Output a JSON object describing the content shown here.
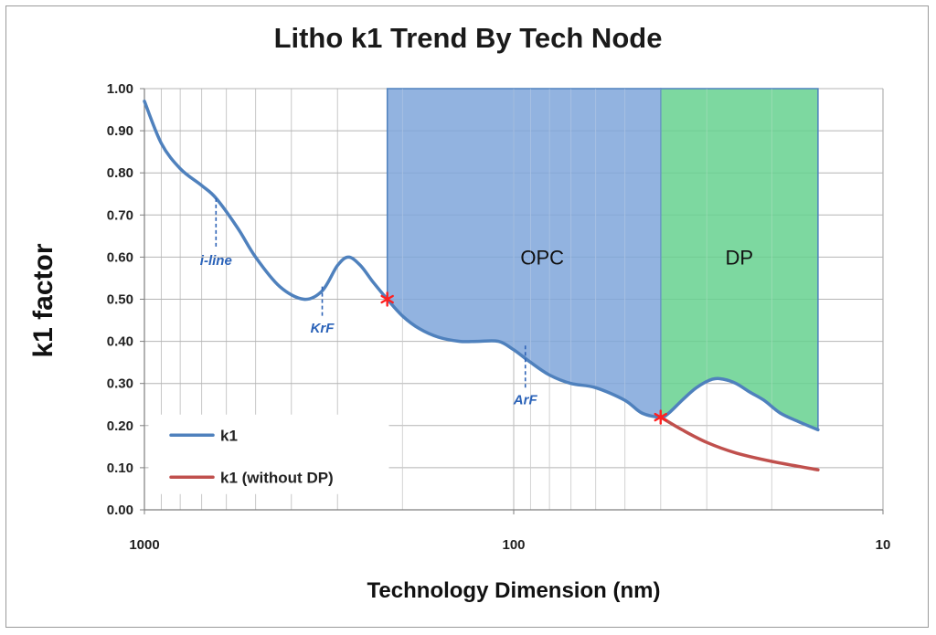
{
  "chart_data": {
    "type": "line",
    "title": "Litho k1 Trend By Tech Node",
    "xlabel": "Technology Dimension (nm)",
    "ylabel": "k1 factor",
    "x_scale": "log",
    "x_reversed": true,
    "xlim": [
      1000,
      10
    ],
    "ylim": [
      0,
      1
    ],
    "grid": true,
    "x_ticks": [
      1000,
      100,
      10
    ],
    "x_tick_labels": [
      "1000",
      "100",
      "10"
    ],
    "y_ticks": [
      0,
      0.1,
      0.2,
      0.3,
      0.4,
      0.5,
      0.6,
      0.7,
      0.8,
      0.9,
      1.0
    ],
    "y_tick_labels": [
      "0.00",
      "0.10",
      "0.20",
      "0.30",
      "0.40",
      "0.50",
      "0.60",
      "0.70",
      "0.80",
      "0.90",
      "1.00"
    ],
    "series": [
      {
        "name": "k1",
        "color": "#4f81bd",
        "x": [
          1000,
          900,
          800,
          700,
          640,
          560,
          500,
          430,
          370,
          330,
          300,
          280,
          260,
          240,
          220,
          200,
          180,
          160,
          140,
          125,
          110,
          100,
          90,
          80,
          70,
          60,
          50,
          45,
          40,
          38,
          35,
          32,
          29,
          27,
          25,
          23,
          21,
          19,
          17,
          15
        ],
        "y": [
          0.97,
          0.87,
          0.81,
          0.77,
          0.74,
          0.67,
          0.6,
          0.53,
          0.5,
          0.52,
          0.58,
          0.6,
          0.58,
          0.54,
          0.5,
          0.46,
          0.43,
          0.41,
          0.4,
          0.4,
          0.4,
          0.38,
          0.35,
          0.32,
          0.3,
          0.29,
          0.26,
          0.23,
          0.22,
          0.23,
          0.26,
          0.29,
          0.31,
          0.31,
          0.3,
          0.28,
          0.26,
          0.23,
          0.21,
          0.19
        ]
      },
      {
        "name": "k1 (without DP)",
        "color": "#c0504d",
        "x": [
          40,
          35,
          30,
          25,
          20,
          15
        ],
        "y": [
          0.22,
          0.19,
          0.16,
          0.135,
          0.115,
          0.095
        ]
      }
    ],
    "regions": [
      {
        "label": "OPC",
        "x_start": 220,
        "x_end": 40,
        "color": "#7fa6da"
      },
      {
        "label": "DP",
        "x_start": 40,
        "x_end": 15,
        "color": "#66d18f"
      }
    ],
    "markers": [
      {
        "x": 220,
        "y": 0.5,
        "color": "#ff2020"
      },
      {
        "x": 40,
        "y": 0.22,
        "color": "#ff2020"
      }
    ],
    "annotations": [
      {
        "text": "i-line",
        "x": 640,
        "y_top": 0.74,
        "y_bottom": 0.62
      },
      {
        "text": "KrF",
        "x": 330,
        "y_top": 0.53,
        "y_bottom": 0.46
      },
      {
        "text": "ArF",
        "x": 93,
        "y_top": 0.39,
        "y_bottom": 0.29
      }
    ],
    "legend": {
      "position": "bottom-left",
      "entries": [
        "k1",
        "k1 (without DP)"
      ]
    }
  }
}
